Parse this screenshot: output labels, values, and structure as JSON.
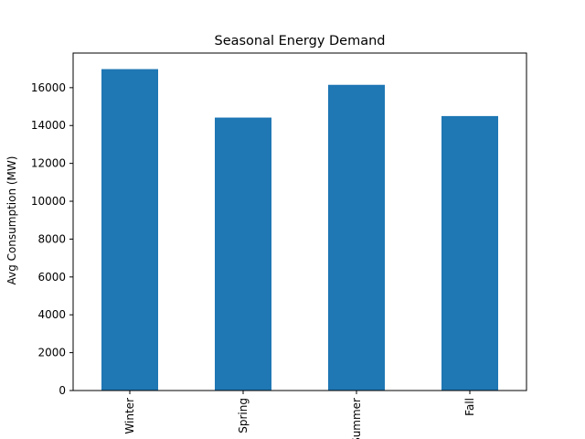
{
  "chart_data": {
    "type": "bar",
    "title": "Seasonal Energy Demand",
    "xlabel": "",
    "ylabel": "Avg Consumption (MW)",
    "categories": [
      "Winter",
      "Spring",
      "Summer",
      "Fall"
    ],
    "values": [
      16980,
      14420,
      16150,
      14500
    ],
    "ylim": [
      0,
      17829
    ],
    "yticks": [
      0,
      2000,
      4000,
      6000,
      8000,
      10000,
      12000,
      14000,
      16000
    ],
    "bar_color": "#1f77b4",
    "grid": false,
    "legend": "none"
  }
}
